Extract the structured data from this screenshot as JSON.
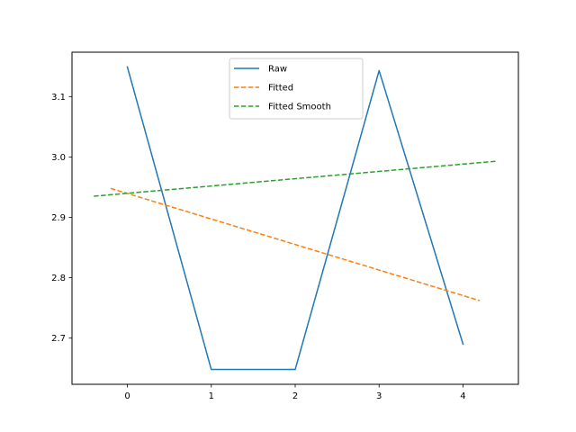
{
  "chart_data": {
    "type": "line",
    "title": "",
    "xlabel": "",
    "ylabel": "",
    "xlim": [
      -0.66,
      4.66
    ],
    "ylim": [
      2.6235,
      3.1735
    ],
    "xticks": [
      0,
      1,
      2,
      3,
      4
    ],
    "yticks": [
      2.7,
      2.8,
      2.9,
      3.0,
      3.1
    ],
    "ytick_labels": [
      "2.7",
      "2.8",
      "2.9",
      "3.0",
      "3.1"
    ],
    "grid": false,
    "legend": "top-center",
    "series": [
      {
        "name": "Raw",
        "color": "#1f77b4",
        "style": "solid",
        "x": [
          0,
          1,
          2,
          3,
          4
        ],
        "y": [
          3.149,
          2.648,
          2.648,
          3.143,
          2.69
        ]
      },
      {
        "name": "Fitted",
        "color": "#ff7f0e",
        "style": "dashed",
        "x": [
          -0.2,
          4.2
        ],
        "y": [
          2.948,
          2.762
        ]
      },
      {
        "name": "Fitted Smooth",
        "color": "#2ca02c",
        "style": "dashed",
        "x": [
          -0.4,
          4.4
        ],
        "y": [
          2.935,
          2.993
        ]
      }
    ]
  }
}
